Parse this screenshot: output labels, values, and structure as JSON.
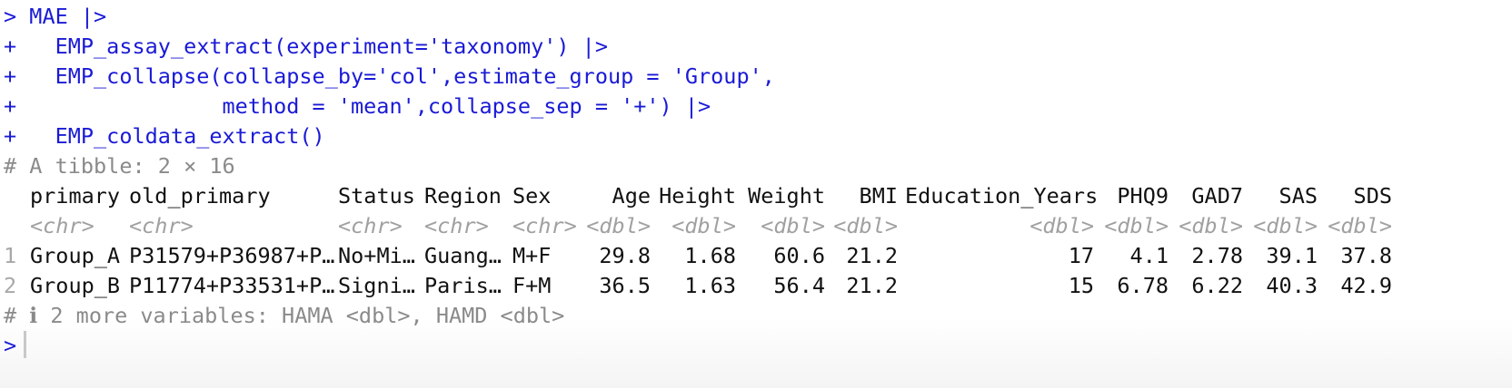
{
  "console": {
    "prompt": ">",
    "continuation": "+",
    "code_lines": [
      "> MAE |>",
      "+   EMP_assay_extract(experiment='taxonomy') |>",
      "+   EMP_collapse(collapse_by='col',estimate_group = 'Group',",
      "+                method = 'mean',collapse_sep = '+') |>",
      "+   EMP_coldata_extract()"
    ],
    "tibble_header": "# A tibble: 2 × 16",
    "columns": [
      {
        "name": "primary",
        "type": "<chr>"
      },
      {
        "name": "old_primary",
        "type": "<chr>"
      },
      {
        "name": "Status",
        "type": "<chr>"
      },
      {
        "name": "Region",
        "type": "<chr>"
      },
      {
        "name": "Sex",
        "type": "<chr>"
      },
      {
        "name": "Age",
        "type": "<dbl>"
      },
      {
        "name": "Height",
        "type": "<dbl>"
      },
      {
        "name": "Weight",
        "type": "<dbl>"
      },
      {
        "name": "BMI",
        "type": "<dbl>"
      },
      {
        "name": "Education_Years",
        "type": "<dbl>"
      },
      {
        "name": "PHQ9",
        "type": "<dbl>"
      },
      {
        "name": "GAD7",
        "type": "<dbl>"
      },
      {
        "name": "SAS",
        "type": "<dbl>"
      },
      {
        "name": "SDS",
        "type": "<dbl>"
      }
    ],
    "rows": [
      {
        "index": "1",
        "cells": [
          "Group_A",
          "P31579+P36987+P…",
          "No+Mi…",
          "Guang…",
          "M+F",
          "29.8",
          "1.68",
          "60.6",
          "21.2",
          "17",
          "4.1",
          "2.78",
          "39.1",
          "37.8"
        ]
      },
      {
        "index": "2",
        "cells": [
          "Group_B",
          "P11774+P33531+P…",
          "Signi…",
          "Paris…",
          "F+M",
          "36.5",
          "1.63",
          "56.4",
          "21.2",
          "15",
          "6.78",
          "6.22",
          "40.3",
          "42.9"
        ]
      }
    ],
    "footer": "# ℹ 2 more variables: HAMA <dbl>, HAMD <dbl>",
    "final_prompt": ">"
  }
}
